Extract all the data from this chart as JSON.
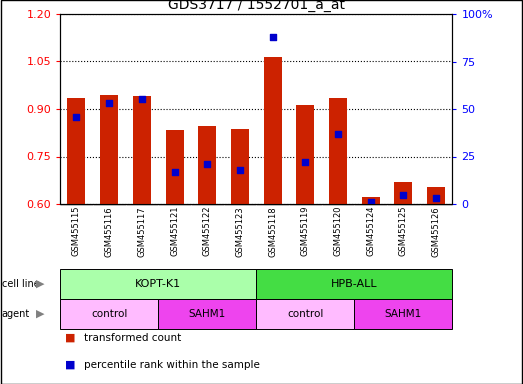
{
  "title": "GDS3717 / 1552701_a_at",
  "samples": [
    "GSM455115",
    "GSM455116",
    "GSM455117",
    "GSM455121",
    "GSM455122",
    "GSM455123",
    "GSM455118",
    "GSM455119",
    "GSM455120",
    "GSM455124",
    "GSM455125",
    "GSM455126"
  ],
  "transformed_count": [
    0.935,
    0.945,
    0.942,
    0.835,
    0.845,
    0.838,
    1.065,
    0.912,
    0.935,
    0.623,
    0.668,
    0.655
  ],
  "percentile_rank": [
    46,
    53,
    55,
    17,
    21,
    18,
    88,
    22,
    37,
    1,
    5,
    3
  ],
  "y_min": 0.6,
  "y_max": 1.2,
  "y_ticks": [
    0.6,
    0.75,
    0.9,
    1.05,
    1.2
  ],
  "y_right_ticks": [
    0,
    25,
    50,
    75,
    100
  ],
  "bar_color": "#cc2200",
  "dot_color": "#0000cc",
  "cell_lines": [
    {
      "label": "KOPT-K1",
      "start": 0,
      "end": 6,
      "color": "#aaffaa"
    },
    {
      "label": "HPB-ALL",
      "start": 6,
      "end": 12,
      "color": "#44dd44"
    }
  ],
  "agents": [
    {
      "label": "control",
      "start": 0,
      "end": 3,
      "color": "#ffbbff"
    },
    {
      "label": "SAHM1",
      "start": 3,
      "end": 6,
      "color": "#ee44ee"
    },
    {
      "label": "control",
      "start": 6,
      "end": 9,
      "color": "#ffbbff"
    },
    {
      "label": "SAHM1",
      "start": 9,
      "end": 12,
      "color": "#ee44ee"
    }
  ],
  "bar_width": 0.55,
  "tick_area_color": "#c8c8c8"
}
